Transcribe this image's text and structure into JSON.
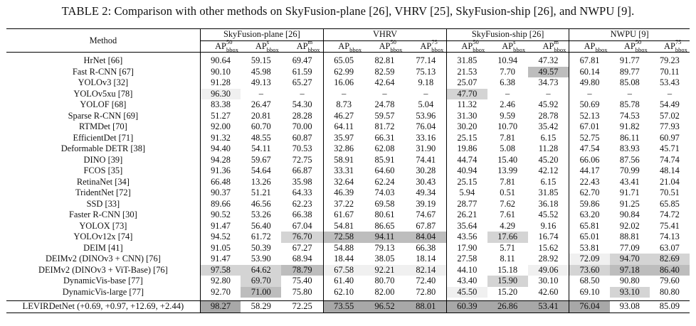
{
  "caption": "TABLE 2: Comparison with other methods on SkyFusion-plane [26], VHRV [25], SkyFusion-ship [26], and NWPU [9].",
  "header": {
    "method": "Method",
    "groups": [
      "SkyFusion-plane [26]",
      "VHRV",
      "SkyFusion-ship [26]",
      "NWPU [9]"
    ],
    "cols": [
      {
        "base": "AP",
        "sup": "50",
        "sub": "bbox"
      },
      {
        "base": "AP",
        "sup": "s",
        "sub": "bbox"
      },
      {
        "base": "AP",
        "sup": "m",
        "sub": "bbox"
      },
      {
        "base": "AP",
        "sup": "",
        "sub": "bbox"
      },
      {
        "base": "AP",
        "sup": "50",
        "sub": "bbox"
      },
      {
        "base": "AP",
        "sup": "75",
        "sub": "bbox"
      },
      {
        "base": "AP",
        "sup": "50",
        "sub": "bbox"
      },
      {
        "base": "AP",
        "sup": "s",
        "sub": "bbox"
      },
      {
        "base": "AP",
        "sup": "m",
        "sub": "bbox"
      },
      {
        "base": "AP",
        "sup": "",
        "sub": "bbox"
      },
      {
        "base": "AP",
        "sup": "50",
        "sub": "bbox"
      },
      {
        "base": "AP",
        "sup": "75",
        "sub": "bbox"
      }
    ]
  },
  "rows": [
    {
      "method": "HrNet [66]",
      "values": [
        "90.64",
        "59.15",
        "69.47",
        "65.05",
        "82.81",
        "77.14",
        "31.85",
        "10.94",
        "47.32",
        "67.81",
        "91.77",
        "79.23"
      ],
      "shade": [
        0,
        0,
        0,
        0,
        0,
        0,
        0,
        0,
        0,
        0,
        0,
        0
      ]
    },
    {
      "method": "Fast R-CNN [67]",
      "values": [
        "90.10",
        "45.98",
        "61.59",
        "62.99",
        "82.59",
        "75.13",
        "21.53",
        "7.70",
        "49.57",
        "60.14",
        "89.77",
        "70.11"
      ],
      "shade": [
        0,
        0,
        0,
        0,
        0,
        0,
        0,
        0,
        3,
        0,
        0,
        0
      ]
    },
    {
      "method": "YOLOv3 [32]",
      "values": [
        "91.28",
        "49.13",
        "65.27",
        "16.06",
        "42.64",
        "9.18",
        "25.07",
        "6.38",
        "34.73",
        "49.80",
        "85.08",
        "53.43"
      ],
      "shade": [
        0,
        0,
        0,
        0,
        0,
        0,
        0,
        0,
        0,
        0,
        0,
        0
      ]
    },
    {
      "method": "YOLOv5xu [78]",
      "values": [
        "96.30",
        "–",
        "–",
        "–",
        "–",
        "–",
        "47.70",
        "–",
        "–",
        "–",
        "–",
        "–"
      ],
      "shade": [
        1,
        0,
        0,
        0,
        0,
        0,
        2,
        0,
        0,
        0,
        0,
        0
      ]
    },
    {
      "method": "YOLOF [68]",
      "values": [
        "83.38",
        "26.47",
        "54.30",
        "8.73",
        "24.78",
        "5.04",
        "11.32",
        "2.46",
        "45.92",
        "50.69",
        "85.78",
        "54.49"
      ],
      "shade": [
        0,
        0,
        0,
        0,
        0,
        0,
        0,
        0,
        0,
        0,
        0,
        0
      ]
    },
    {
      "method": "Sparse R-CNN [69]",
      "values": [
        "51.27",
        "20.81",
        "28.28",
        "46.27",
        "59.57",
        "53.96",
        "31.30",
        "9.59",
        "28.78",
        "52.13",
        "74.53",
        "57.02"
      ],
      "shade": [
        0,
        0,
        0,
        0,
        0,
        0,
        0,
        0,
        0,
        0,
        0,
        0
      ]
    },
    {
      "method": "RTMDet [70]",
      "values": [
        "92.00",
        "60.70",
        "70.00",
        "64.11",
        "81.72",
        "76.04",
        "30.20",
        "10.70",
        "35.42",
        "67.01",
        "91.82",
        "77.93"
      ],
      "shade": [
        0,
        0,
        0,
        0,
        0,
        0,
        0,
        0,
        0,
        0,
        0,
        0
      ]
    },
    {
      "method": "EfficientDet [71]",
      "values": [
        "91.32",
        "48.55",
        "60.87",
        "35.97",
        "66.31",
        "33.16",
        "25.15",
        "7.81",
        "6.15",
        "52.75",
        "86.11",
        "60.97"
      ],
      "shade": [
        0,
        0,
        0,
        0,
        0,
        0,
        0,
        0,
        0,
        0,
        0,
        0
      ]
    },
    {
      "method": "Deformable DETR [38]",
      "values": [
        "94.40",
        "54.11",
        "70.53",
        "32.86",
        "62.08",
        "31.90",
        "19.86",
        "5.08",
        "11.28",
        "47.54",
        "83.93",
        "45.71"
      ],
      "shade": [
        0,
        0,
        0,
        0,
        0,
        0,
        0,
        0,
        0,
        0,
        0,
        0
      ]
    },
    {
      "method": "DINO [39]",
      "values": [
        "94.28",
        "59.67",
        "72.75",
        "58.91",
        "85.91",
        "74.41",
        "44.74",
        "15.40",
        "45.20",
        "66.06",
        "87.56",
        "74.74"
      ],
      "shade": [
        0,
        0,
        0,
        0,
        0,
        0,
        0,
        0,
        0,
        0,
        0,
        0
      ]
    },
    {
      "method": "FCOS [35]",
      "values": [
        "91.36",
        "54.64",
        "66.87",
        "33.31",
        "64.60",
        "30.28",
        "40.94",
        "13.99",
        "42.12",
        "44.17",
        "70.99",
        "48.14"
      ],
      "shade": [
        0,
        0,
        0,
        0,
        0,
        0,
        0,
        0,
        0,
        0,
        0,
        0
      ]
    },
    {
      "method": "RetinaNet [34]",
      "values": [
        "66.48",
        "13.26",
        "35.98",
        "32.64",
        "62.24",
        "30.43",
        "25.15",
        "7.81",
        "6.15",
        "22.43",
        "43.41",
        "21.04"
      ],
      "shade": [
        0,
        0,
        0,
        0,
        0,
        0,
        0,
        0,
        0,
        0,
        0,
        0
      ]
    },
    {
      "method": "TridentNet [72]",
      "values": [
        "90.37",
        "51.21",
        "64.33",
        "46.39",
        "74.03",
        "49.34",
        "5.94",
        "0.51",
        "31.85",
        "62.70",
        "91.71",
        "70.51"
      ],
      "shade": [
        0,
        0,
        0,
        0,
        0,
        0,
        0,
        0,
        0,
        0,
        0,
        0
      ]
    },
    {
      "method": "SSD [33]",
      "values": [
        "89.66",
        "46.56",
        "62.23",
        "37.22",
        "69.58",
        "39.19",
        "28.77",
        "7.62",
        "36.18",
        "59.86",
        "91.25",
        "65.85"
      ],
      "shade": [
        0,
        0,
        0,
        0,
        0,
        0,
        0,
        0,
        0,
        0,
        0,
        0
      ]
    },
    {
      "method": "Faster R-CNN [30]",
      "values": [
        "90.52",
        "53.26",
        "66.38",
        "61.67",
        "80.61",
        "74.67",
        "26.21",
        "7.61",
        "45.52",
        "63.20",
        "90.84",
        "74.72"
      ],
      "shade": [
        0,
        0,
        0,
        0,
        0,
        0,
        0,
        0,
        0,
        0,
        0,
        0
      ]
    },
    {
      "method": "YOLOX [73]",
      "values": [
        "91.47",
        "56.40",
        "67.04",
        "54.81",
        "86.65",
        "67.87",
        "35.64",
        "4.29",
        "9.16",
        "65.81",
        "92.02",
        "75.41"
      ],
      "shade": [
        0,
        0,
        0,
        0,
        0,
        0,
        0,
        0,
        0,
        0,
        0,
        0
      ]
    },
    {
      "method": "YOLOv12x [74]",
      "values": [
        "94.52",
        "61.72",
        "76.70",
        "72.58",
        "94.11",
        "84.04",
        "43.56",
        "17.66",
        "16.74",
        "65.01",
        "88.81",
        "74.13"
      ],
      "shade": [
        0,
        0,
        2,
        3,
        3,
        3,
        0,
        2,
        0,
        0,
        0,
        0
      ]
    },
    {
      "method": "DEIM [41]",
      "values": [
        "91.05",
        "50.39",
        "67.27",
        "54.88",
        "79.13",
        "66.38",
        "17.90",
        "5.71",
        "15.62",
        "53.81",
        "77.09",
        "63.07"
      ],
      "shade": [
        0,
        0,
        0,
        0,
        0,
        0,
        0,
        0,
        0,
        0,
        0,
        0
      ]
    },
    {
      "method": "DEIMv2 (DINOv3 + CNN) [76]",
      "values": [
        "91.47",
        "53.90",
        "68.94",
        "18.44",
        "38.05",
        "18.14",
        "27.58",
        "8.11",
        "28.92",
        "72.09",
        "94.70",
        "82.69"
      ],
      "shade": [
        0,
        0,
        0,
        0,
        0,
        0,
        0,
        0,
        0,
        1,
        2,
        2
      ]
    },
    {
      "method": "DEIMv2 (DINOv3 + ViT-Base) [76]",
      "values": [
        "97.58",
        "64.62",
        "78.79",
        "67.58",
        "92.21",
        "82.14",
        "44.10",
        "15.18",
        "49.06",
        "73.60",
        "97.18",
        "86.40"
      ],
      "shade": [
        2,
        2,
        3,
        1,
        1,
        1,
        0,
        0,
        1,
        2,
        3,
        3
      ]
    },
    {
      "method": "DynamicVis-base [77]",
      "values": [
        "92.80",
        "69.70",
        "75.40",
        "61.40",
        "80.70",
        "72.40",
        "43.40",
        "15.90",
        "30.10",
        "68.50",
        "90.80",
        "79.60"
      ],
      "shade": [
        0,
        2,
        0,
        0,
        0,
        0,
        0,
        2,
        0,
        0,
        0,
        0
      ]
    },
    {
      "method": "DynamicVis-large [77]",
      "values": [
        "92.70",
        "71.00",
        "75.80",
        "62.10",
        "82.00",
        "72.80",
        "45.50",
        "15.20",
        "42.60",
        "69.10",
        "93.10",
        "80.80"
      ],
      "shade": [
        0,
        3,
        0,
        0,
        0,
        0,
        1,
        0,
        0,
        0,
        2,
        0
      ]
    }
  ],
  "final": {
    "method": "LEVIRDetNet (+0.69, +0.97, +12.69, +2.44)",
    "values": [
      "98.27",
      "58.29",
      "72.25",
      "73.55",
      "96.52",
      "88.01",
      "60.39",
      "26.86",
      "53.41",
      "76.04",
      "93.08",
      "85.09"
    ],
    "shade": [
      4,
      0,
      0,
      4,
      4,
      4,
      4,
      4,
      4,
      4,
      0,
      0
    ]
  }
}
